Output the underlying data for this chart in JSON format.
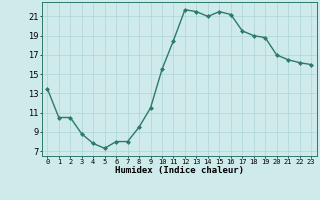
{
  "x": [
    0,
    1,
    2,
    3,
    4,
    5,
    6,
    7,
    8,
    9,
    10,
    11,
    12,
    13,
    14,
    15,
    16,
    17,
    18,
    19,
    20,
    21,
    22,
    23
  ],
  "y": [
    13.5,
    10.5,
    10.5,
    8.8,
    7.8,
    7.3,
    8.0,
    8.0,
    9.5,
    11.5,
    15.5,
    18.5,
    21.7,
    21.5,
    21.0,
    21.5,
    21.2,
    19.5,
    19.0,
    18.8,
    17.0,
    16.5,
    16.2,
    16.0
  ],
  "line_color": "#2d7a6a",
  "marker": "D",
  "marker_size": 2.0,
  "bg_color": "#ceeaea",
  "grid_color": "#aed4d4",
  "xlabel": "Humidex (Indice chaleur)",
  "yticks": [
    7,
    9,
    11,
    13,
    15,
    17,
    19,
    21
  ],
  "xtick_labels": [
    "0",
    "1",
    "2",
    "3",
    "4",
    "5",
    "6",
    "7",
    "8",
    "9",
    "10",
    "11",
    "12",
    "13",
    "14",
    "15",
    "16",
    "17",
    "18",
    "19",
    "20",
    "21",
    "22",
    "23"
  ],
  "ylim": [
    6.5,
    22.5
  ],
  "xlim": [
    -0.5,
    23.5
  ],
  "xlabel_fontsize": 6.5,
  "ytick_fontsize": 6.0,
  "xtick_fontsize": 5.0
}
